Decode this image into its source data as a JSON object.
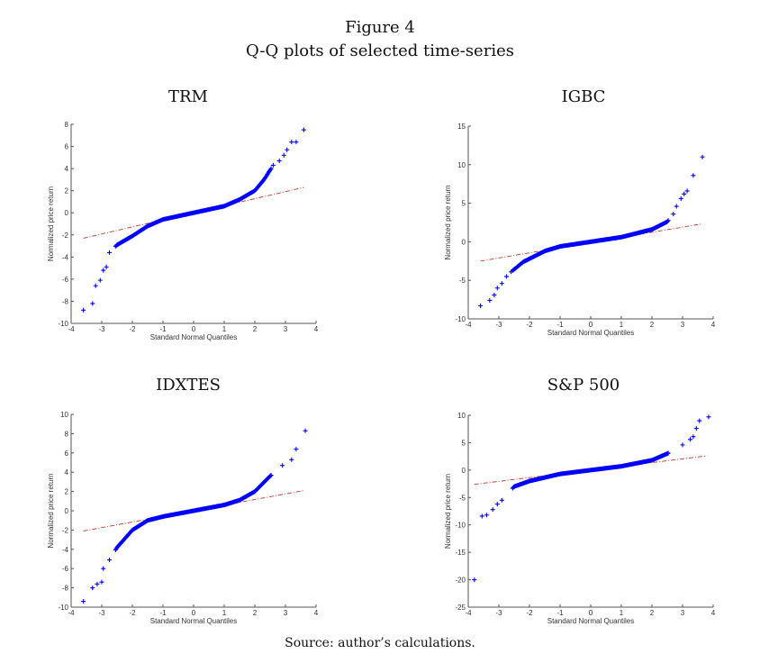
{
  "figure": {
    "title_line1": "Figure 4",
    "title_line2": "Q-Q plots of selected time-series",
    "source": "Source: author’s calculations."
  },
  "colors": {
    "marker": "#0000ff",
    "reference_line": "#c0392b",
    "axis": "#555555"
  },
  "chart_data": [
    {
      "type": "scatter",
      "title": "TRM",
      "xlabel": "Standard Normal Quantiles",
      "ylabel": "Normalized price return",
      "xlim": [
        -4,
        4
      ],
      "ylim": [
        -10,
        8
      ],
      "xticks": [
        "-4",
        "-3",
        "-2",
        "-1",
        "0",
        "1",
        "2",
        "3",
        "4"
      ],
      "yticks": [
        "-10",
        "-8",
        "-6",
        "-4",
        "-2",
        "0",
        "2",
        "4",
        "6",
        "8"
      ],
      "grid": false,
      "series": [
        {
          "name": "sample quantiles",
          "marker": "+",
          "points": [
            [
              -3.6,
              -8.8
            ],
            [
              -3.3,
              -8.2
            ],
            [
              -3.2,
              -6.6
            ],
            [
              -3.05,
              -6.1
            ],
            [
              -2.95,
              -5.2
            ],
            [
              -2.85,
              -4.9
            ],
            [
              -2.75,
              -3.6
            ],
            [
              -2.5,
              -2.9
            ],
            [
              -2.0,
              -2.1
            ],
            [
              -1.5,
              -1.2
            ],
            [
              -1.0,
              -0.6
            ],
            [
              0.0,
              0.0
            ],
            [
              1.0,
              0.6
            ],
            [
              1.5,
              1.2
            ],
            [
              2.0,
              2.0
            ],
            [
              2.3,
              3.0
            ],
            [
              2.6,
              4.3
            ],
            [
              2.8,
              4.7
            ],
            [
              2.95,
              5.2
            ],
            [
              3.05,
              5.7
            ],
            [
              3.2,
              6.4
            ],
            [
              3.35,
              6.4
            ],
            [
              3.6,
              7.5
            ]
          ]
        },
        {
          "name": "reference line",
          "style": "dash-dot",
          "points": [
            [
              -3.6,
              -2.3
            ],
            [
              3.6,
              2.3
            ]
          ]
        }
      ]
    },
    {
      "type": "scatter",
      "title": "IGBC",
      "xlabel": "Standard Normal Quantiles",
      "ylabel": "Normalized price return",
      "xlim": [
        -4,
        4
      ],
      "ylim": [
        -10,
        15
      ],
      "xticks": [
        "-4",
        "-3",
        "-2",
        "-1",
        "0",
        "1",
        "2",
        "3",
        "4"
      ],
      "yticks": [
        "-10",
        "-5",
        "0",
        "5",
        "10",
        "15"
      ],
      "grid": false,
      "series": [
        {
          "name": "sample quantiles",
          "marker": "+",
          "points": [
            [
              -3.6,
              -8.3
            ],
            [
              -3.3,
              -7.6
            ],
            [
              -3.15,
              -6.9
            ],
            [
              -3.05,
              -6.0
            ],
            [
              -2.9,
              -5.4
            ],
            [
              -2.75,
              -4.5
            ],
            [
              -2.6,
              -3.9
            ],
            [
              -2.2,
              -2.6
            ],
            [
              -1.5,
              -1.2
            ],
            [
              -1.0,
              -0.6
            ],
            [
              0.0,
              0.0
            ],
            [
              1.0,
              0.6
            ],
            [
              2.0,
              1.6
            ],
            [
              2.5,
              2.6
            ],
            [
              2.7,
              3.6
            ],
            [
              2.8,
              4.6
            ],
            [
              2.95,
              5.6
            ],
            [
              3.05,
              6.2
            ],
            [
              3.15,
              6.6
            ],
            [
              3.35,
              8.6
            ],
            [
              3.65,
              11.0
            ]
          ]
        },
        {
          "name": "reference line",
          "style": "dash-dot",
          "points": [
            [
              -3.6,
              -2.5
            ],
            [
              3.6,
              2.3
            ]
          ]
        }
      ]
    },
    {
      "type": "scatter",
      "title": "IDXTES",
      "xlabel": "Standard Normal Quantiles",
      "ylabel": "Normalized price return",
      "xlim": [
        -4,
        4
      ],
      "ylim": [
        -10,
        10
      ],
      "xticks": [
        "-4",
        "-3",
        "-2",
        "-1",
        "0",
        "1",
        "2",
        "3",
        "4"
      ],
      "yticks": [
        "-10",
        "-8",
        "-6",
        "-4",
        "-2",
        "0",
        "2",
        "4",
        "6",
        "8",
        "10"
      ],
      "grid": false,
      "series": [
        {
          "name": "sample quantiles",
          "marker": "+",
          "points": [
            [
              -3.6,
              -9.4
            ],
            [
              -3.3,
              -8.0
            ],
            [
              -3.15,
              -7.6
            ],
            [
              -3.0,
              -7.4
            ],
            [
              -2.95,
              -6.0
            ],
            [
              -2.75,
              -5.1
            ],
            [
              -2.5,
              -3.8
            ],
            [
              -2.0,
              -2.0
            ],
            [
              -1.5,
              -1.0
            ],
            [
              -1.0,
              -0.6
            ],
            [
              0.0,
              0.0
            ],
            [
              1.0,
              0.6
            ],
            [
              1.5,
              1.1
            ],
            [
              2.0,
              2.0
            ],
            [
              2.5,
              3.6
            ],
            [
              2.9,
              4.7
            ],
            [
              3.2,
              5.3
            ],
            [
              3.35,
              6.4
            ],
            [
              3.65,
              8.3
            ]
          ]
        },
        {
          "name": "reference line",
          "style": "dash-dot",
          "points": [
            [
              -3.6,
              -2.1
            ],
            [
              3.6,
              2.1
            ]
          ]
        }
      ]
    },
    {
      "type": "scatter",
      "title": "S&P 500",
      "xlabel": "Standard Normal Quantiles",
      "ylabel": "Normalized price return",
      "xlim": [
        -4,
        4
      ],
      "ylim": [
        -25,
        10
      ],
      "xticks": [
        "-4",
        "-3",
        "-2",
        "-1",
        "0",
        "1",
        "2",
        "3",
        "4"
      ],
      "yticks": [
        "-25",
        "-20",
        "-15",
        "-10",
        "-5",
        "0",
        "5",
        "10"
      ],
      "grid": false,
      "series": [
        {
          "name": "sample quantiles",
          "marker": "+",
          "points": [
            [
              -3.8,
              -20.0
            ],
            [
              -3.55,
              -8.4
            ],
            [
              -3.4,
              -8.2
            ],
            [
              -3.2,
              -7.2
            ],
            [
              -3.05,
              -6.2
            ],
            [
              -2.9,
              -5.5
            ],
            [
              -2.5,
              -3.0
            ],
            [
              -2.0,
              -2.0
            ],
            [
              -1.0,
              -0.7
            ],
            [
              0.0,
              0.0
            ],
            [
              1.0,
              0.7
            ],
            [
              2.0,
              1.8
            ],
            [
              2.5,
              3.0
            ],
            [
              3.0,
              4.6
            ],
            [
              3.25,
              5.6
            ],
            [
              3.35,
              6.1
            ],
            [
              3.45,
              7.6
            ],
            [
              3.55,
              9.0
            ],
            [
              3.85,
              9.7
            ]
          ]
        },
        {
          "name": "reference line",
          "style": "dash-dot",
          "points": [
            [
              -3.8,
              -2.6
            ],
            [
              3.8,
              2.6
            ]
          ]
        }
      ]
    }
  ]
}
